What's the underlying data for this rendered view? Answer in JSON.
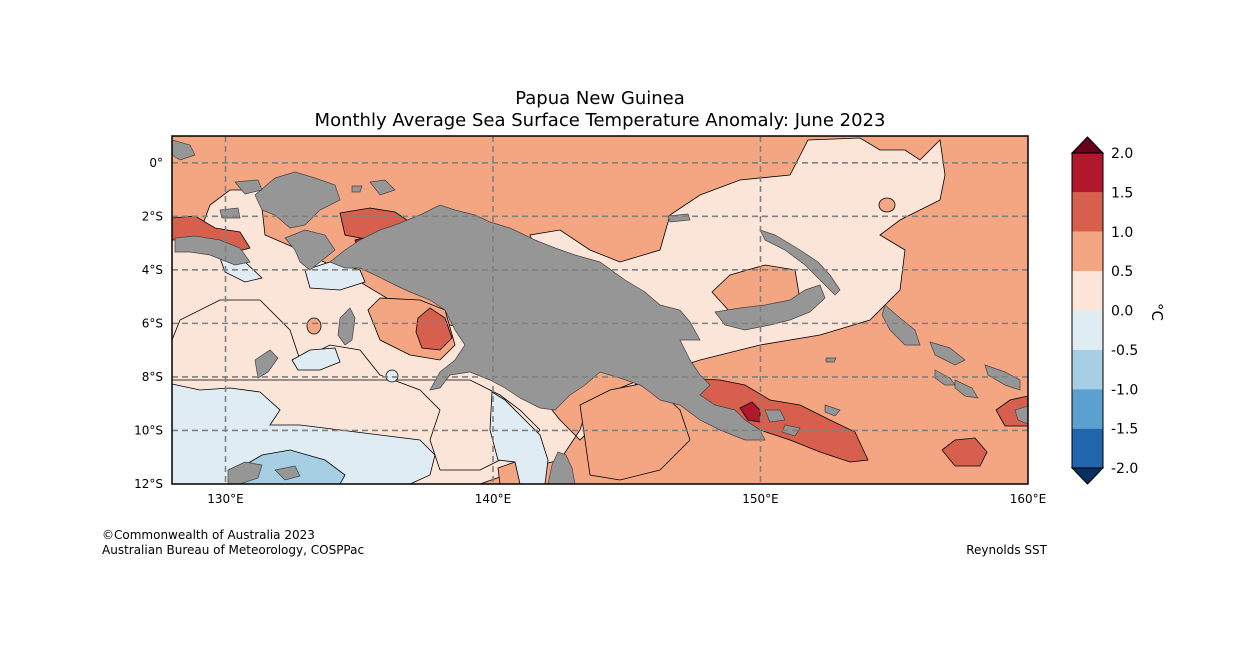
{
  "title": {
    "line1": "Papua New Guinea",
    "line2": "Monthly Average Sea Surface Temperature Anomaly: June 2023"
  },
  "map": {
    "lon_range": [
      128,
      160
    ],
    "lat_range": [
      -12,
      1
    ],
    "x_ticks": [
      "130°E",
      "140°E",
      "150°E",
      "160°E"
    ],
    "y_ticks": [
      "0°",
      "2°S",
      "4°S",
      "6°S",
      "8°S",
      "10°S",
      "12°S"
    ],
    "gridlines": "dashed",
    "land_color": "#969696"
  },
  "colorbar": {
    "label": "°C",
    "tick_labels": [
      "2.0",
      "1.5",
      "1.0",
      "0.5",
      "0.0",
      "-0.5",
      "-1.0",
      "-1.5",
      "-2.0"
    ],
    "bins": [
      {
        "range": "1.5 to 2.0",
        "color": "#b2182b"
      },
      {
        "range": "1.0 to 1.5",
        "color": "#d6604d"
      },
      {
        "range": "0.5 to 1.0",
        "color": "#f4a582"
      },
      {
        "range": "0.0 to 0.5",
        "color": "#fbe5d8"
      },
      {
        "range": "-0.5 to 0.0",
        "color": "#e0ecf4"
      },
      {
        "range": "-1.0 to -0.5",
        "color": "#a6cfe3"
      },
      {
        "range": "-1.5 to -1.0",
        "color": "#5aa1cf"
      },
      {
        "range": "-2.0 to -1.5",
        "color": "#2166ac"
      }
    ],
    "over_color": "#67001f",
    "under_color": "#053061"
  },
  "footer": {
    "copyright": "©Commonwealth of Australia 2023",
    "agency": "Australian Bureau of Meteorology, COSPPac",
    "source": "Reynolds SST"
  }
}
